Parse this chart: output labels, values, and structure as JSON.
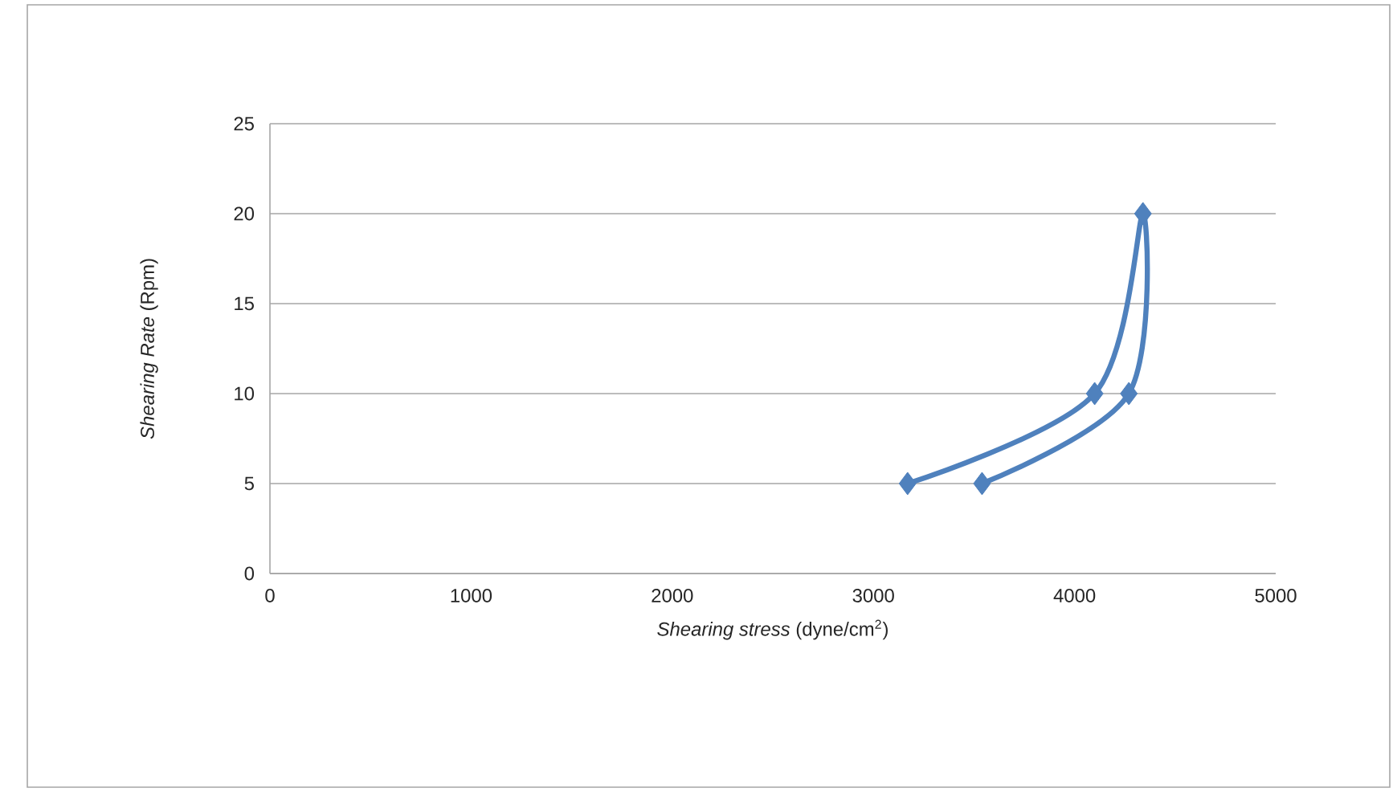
{
  "chart_data": {
    "type": "line",
    "xlabel": "*Shearing stress* (dyne/cm$^{2}$)",
    "ylabel": "*Shearing Rate* (Rpm)",
    "x": [
      3170,
      4100,
      4340,
      4270,
      3540
    ],
    "values": [
      5,
      10,
      20,
      10,
      5
    ],
    "color": "#4f81bd",
    "xlim": [
      0,
      5000
    ],
    "xticks": [
      0,
      1000,
      2000,
      3000,
      4000,
      5000
    ],
    "ylim": [
      0,
      25
    ],
    "yticks": [
      0,
      5,
      10,
      15,
      20,
      25
    ],
    "grid": "y",
    "marker": "diamond"
  }
}
